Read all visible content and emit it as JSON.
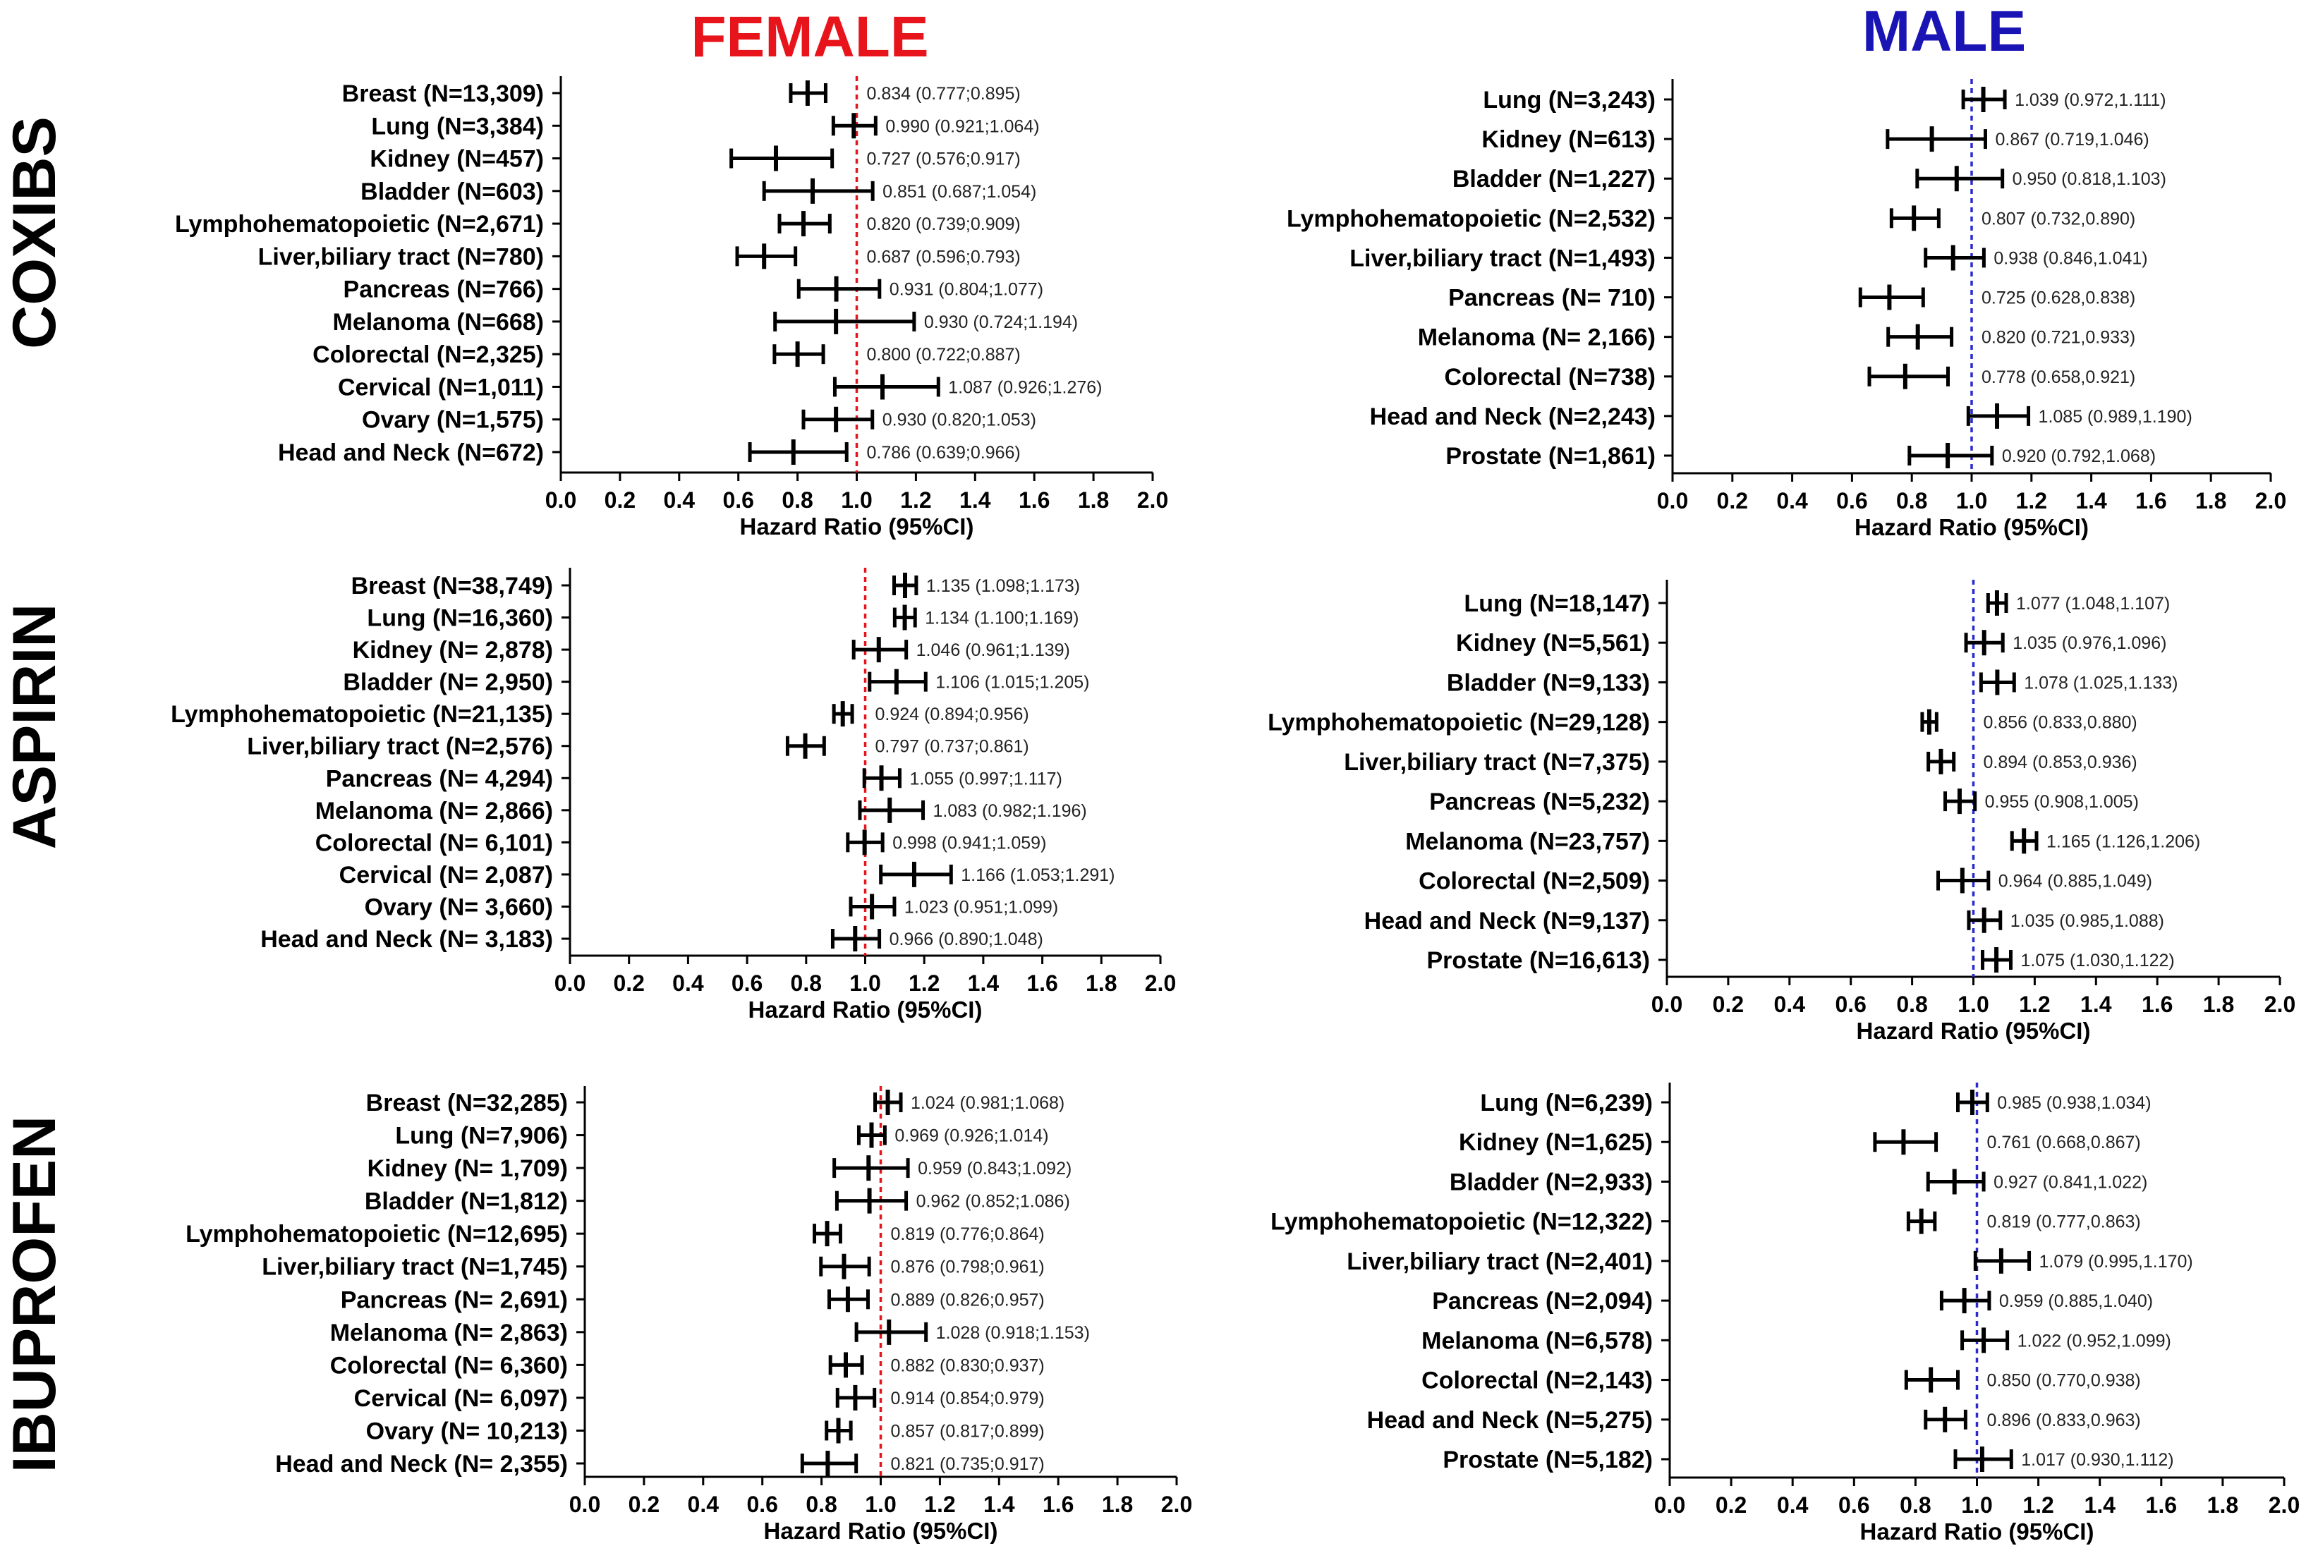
{
  "columns": [
    {
      "key": "female",
      "title": "FEMALE",
      "color": "#e8141b",
      "refline_color": "#e8141b"
    },
    {
      "key": "male",
      "title": "MALE",
      "color": "#1a14b4",
      "refline_color": "#2a2ad0"
    }
  ],
  "rows": [
    {
      "key": "coxibs",
      "title": "COXIBS"
    },
    {
      "key": "aspirin",
      "title": "ASPIRIN"
    },
    {
      "key": "ibuprofen",
      "title": "IBUPROFEN"
    }
  ],
  "chart_data": [
    {
      "type": "forest",
      "drug": "COXIBS",
      "sex": "FEMALE",
      "xlabel": "Hazard Ratio (95%CI)",
      "xlim": [
        0,
        2.0
      ],
      "reference": 1.0,
      "ticks": [
        "0.0",
        "0.2",
        "0.4",
        "0.6",
        "0.8",
        "1.0",
        "1.2",
        "1.4",
        "1.6",
        "1.8",
        "2.0"
      ],
      "items": [
        {
          "label": "Breast (N=13,309)",
          "hr": 0.834,
          "lo": 0.777,
          "hi": 0.895,
          "ci_text": "0.834 (0.777;0.895)"
        },
        {
          "label": "Lung (N=3,384)",
          "hr": 0.99,
          "lo": 0.921,
          "hi": 1.064,
          "ci_text": "0.990 (0.921;1.064)"
        },
        {
          "label": "Kidney (N=457)",
          "hr": 0.727,
          "lo": 0.576,
          "hi": 0.917,
          "ci_text": "0.727 (0.576;0.917)"
        },
        {
          "label": "Bladder (N=603)",
          "hr": 0.851,
          "lo": 0.687,
          "hi": 1.054,
          "ci_text": "0.851 (0.687;1.054)"
        },
        {
          "label": "Lymphohematopoietic (N=2,671)",
          "hr": 0.82,
          "lo": 0.739,
          "hi": 0.909,
          "ci_text": "0.820 (0.739;0.909)"
        },
        {
          "label": "Liver,biliary tract (N=780)",
          "hr": 0.687,
          "lo": 0.596,
          "hi": 0.793,
          "ci_text": "0.687 (0.596;0.793)"
        },
        {
          "label": "Pancreas (N=766)",
          "hr": 0.931,
          "lo": 0.804,
          "hi": 1.077,
          "ci_text": "0.931 (0.804;1.077)"
        },
        {
          "label": "Melanoma (N=668)",
          "hr": 0.93,
          "lo": 0.724,
          "hi": 1.194,
          "ci_text": "0.930 (0.724;1.194)"
        },
        {
          "label": "Colorectal (N=2,325)",
          "hr": 0.8,
          "lo": 0.722,
          "hi": 0.887,
          "ci_text": "0.800 (0.722;0.887)"
        },
        {
          "label": "Cervical (N=1,011)",
          "hr": 1.087,
          "lo": 0.926,
          "hi": 1.276,
          "ci_text": "1.087 (0.926;1.276)"
        },
        {
          "label": "Ovary (N=1,575)",
          "hr": 0.93,
          "lo": 0.82,
          "hi": 1.053,
          "ci_text": "0.930 (0.820;1.053)"
        },
        {
          "label": "Head and Neck (N=672)",
          "hr": 0.786,
          "lo": 0.639,
          "hi": 0.966,
          "ci_text": "0.786 (0.639;0.966)"
        }
      ]
    },
    {
      "type": "forest",
      "drug": "COXIBS",
      "sex": "MALE",
      "xlabel": "Hazard Ratio (95%CI)",
      "xlim": [
        0,
        2.0
      ],
      "reference": 1.0,
      "ticks": [
        "0.0",
        "0.2",
        "0.4",
        "0.6",
        "0.8",
        "1.0",
        "1.2",
        "1.4",
        "1.6",
        "1.8",
        "2.0"
      ],
      "items": [
        {
          "label": "Lung (N=3,243)",
          "hr": 1.039,
          "lo": 0.972,
          "hi": 1.111,
          "ci_text": "1.039 (0.972,1.111)"
        },
        {
          "label": "Kidney (N=613)",
          "hr": 0.867,
          "lo": 0.719,
          "hi": 1.046,
          "ci_text": "0.867 (0.719,1.046)"
        },
        {
          "label": "Bladder (N=1,227)",
          "hr": 0.95,
          "lo": 0.818,
          "hi": 1.103,
          "ci_text": "0.950 (0.818,1.103)"
        },
        {
          "label": "Lymphohematopoietic (N=2,532)",
          "hr": 0.807,
          "lo": 0.732,
          "hi": 0.89,
          "ci_text": "0.807 (0.732,0.890)"
        },
        {
          "label": "Liver,biliary tract (N=1,493)",
          "hr": 0.938,
          "lo": 0.846,
          "hi": 1.041,
          "ci_text": "0.938 (0.846,1.041)"
        },
        {
          "label": "Pancreas (N= 710)",
          "hr": 0.725,
          "lo": 0.628,
          "hi": 0.838,
          "ci_text": "0.725 (0.628,0.838)"
        },
        {
          "label": "Melanoma (N= 2,166)",
          "hr": 0.82,
          "lo": 0.721,
          "hi": 0.933,
          "ci_text": "0.820 (0.721,0.933)"
        },
        {
          "label": "Colorectal (N=738)",
          "hr": 0.778,
          "lo": 0.658,
          "hi": 0.921,
          "ci_text": "0.778 (0.658,0.921)"
        },
        {
          "label": "Head and Neck (N=2,243)",
          "hr": 1.085,
          "lo": 0.989,
          "hi": 1.19,
          "ci_text": "1.085 (0.989,1.190)"
        },
        {
          "label": "Prostate (N=1,861)",
          "hr": 0.92,
          "lo": 0.792,
          "hi": 1.068,
          "ci_text": "0.920 (0.792,1.068)"
        }
      ]
    },
    {
      "type": "forest",
      "drug": "ASPIRIN",
      "sex": "FEMALE",
      "xlabel": "Hazard Ratio (95%CI)",
      "xlim": [
        0,
        2.0
      ],
      "reference": 1.0,
      "ticks": [
        "0.0",
        "0.2",
        "0.4",
        "0.6",
        "0.8",
        "1.0",
        "1.2",
        "1.4",
        "1.6",
        "1.8",
        "2.0"
      ],
      "items": [
        {
          "label": "Breast (N=38,749)",
          "hr": 1.135,
          "lo": 1.098,
          "hi": 1.173,
          "ci_text": "1.135 (1.098;1.173)"
        },
        {
          "label": "Lung (N=16,360)",
          "hr": 1.134,
          "lo": 1.1,
          "hi": 1.169,
          "ci_text": "1.134 (1.100;1.169)"
        },
        {
          "label": "Kidney (N= 2,878)",
          "hr": 1.046,
          "lo": 0.961,
          "hi": 1.139,
          "ci_text": "1.046 (0.961;1.139)"
        },
        {
          "label": "Bladder (N= 2,950)",
          "hr": 1.106,
          "lo": 1.015,
          "hi": 1.205,
          "ci_text": "1.106 (1.015;1.205)"
        },
        {
          "label": "Lymphohematopoietic (N=21,135)",
          "hr": 0.924,
          "lo": 0.894,
          "hi": 0.956,
          "ci_text": "0.924 (0.894;0.956)"
        },
        {
          "label": "Liver,biliary tract (N=2,576)",
          "hr": 0.797,
          "lo": 0.737,
          "hi": 0.861,
          "ci_text": "0.797 (0.737;0.861)"
        },
        {
          "label": "Pancreas (N= 4,294)",
          "hr": 1.055,
          "lo": 0.997,
          "hi": 1.117,
          "ci_text": "1.055 (0.997;1.117)"
        },
        {
          "label": "Melanoma (N= 2,866)",
          "hr": 1.083,
          "lo": 0.982,
          "hi": 1.196,
          "ci_text": "1.083 (0.982;1.196)"
        },
        {
          "label": "Colorectal (N= 6,101)",
          "hr": 0.998,
          "lo": 0.941,
          "hi": 1.059,
          "ci_text": "0.998 (0.941;1.059)"
        },
        {
          "label": "Cervical (N= 2,087)",
          "hr": 1.166,
          "lo": 1.053,
          "hi": 1.291,
          "ci_text": "1.166 (1.053;1.291)"
        },
        {
          "label": "Ovary (N= 3,660)",
          "hr": 1.023,
          "lo": 0.951,
          "hi": 1.099,
          "ci_text": "1.023 (0.951;1.099)"
        },
        {
          "label": "Head and Neck (N= 3,183)",
          "hr": 0.966,
          "lo": 0.89,
          "hi": 1.048,
          "ci_text": "0.966 (0.890;1.048)"
        }
      ]
    },
    {
      "type": "forest",
      "drug": "ASPIRIN",
      "sex": "MALE",
      "xlabel": "Hazard Ratio (95%CI)",
      "xlim": [
        0,
        2.0
      ],
      "reference": 1.0,
      "ticks": [
        "0.0",
        "0.2",
        "0.4",
        "0.6",
        "0.8",
        "1.0",
        "1.2",
        "1.4",
        "1.6",
        "1.8",
        "2.0"
      ],
      "items": [
        {
          "label": "Lung (N=18,147)",
          "hr": 1.077,
          "lo": 1.048,
          "hi": 1.107,
          "ci_text": "1.077 (1.048,1.107)"
        },
        {
          "label": "Kidney (N=5,561)",
          "hr": 1.035,
          "lo": 0.976,
          "hi": 1.096,
          "ci_text": "1.035 (0.976,1.096)"
        },
        {
          "label": "Bladder (N=9,133)",
          "hr": 1.078,
          "lo": 1.025,
          "hi": 1.133,
          "ci_text": "1.078 (1.025,1.133)"
        },
        {
          "label": "Lymphohematopoietic (N=29,128)",
          "hr": 0.856,
          "lo": 0.833,
          "hi": 0.88,
          "ci_text": "0.856 (0.833,0.880)"
        },
        {
          "label": "Liver,biliary tract (N=7,375)",
          "hr": 0.894,
          "lo": 0.853,
          "hi": 0.936,
          "ci_text": "0.894 (0.853,0.936)"
        },
        {
          "label": "Pancreas (N=5,232)",
          "hr": 0.955,
          "lo": 0.908,
          "hi": 1.005,
          "ci_text": "0.955 (0.908,1.005)"
        },
        {
          "label": "Melanoma (N=23,757)",
          "hr": 1.165,
          "lo": 1.126,
          "hi": 1.206,
          "ci_text": "1.165 (1.126,1.206)"
        },
        {
          "label": "Colorectal (N=2,509)",
          "hr": 0.964,
          "lo": 0.885,
          "hi": 1.049,
          "ci_text": "0.964 (0.885,1.049)"
        },
        {
          "label": "Head and Neck (N=9,137)",
          "hr": 1.035,
          "lo": 0.985,
          "hi": 1.088,
          "ci_text": "1.035 (0.985,1.088)"
        },
        {
          "label": "Prostate (N=16,613)",
          "hr": 1.075,
          "lo": 1.03,
          "hi": 1.122,
          "ci_text": "1.075 (1.030,1.122)"
        }
      ]
    },
    {
      "type": "forest",
      "drug": "IBUPROFEN",
      "sex": "FEMALE",
      "xlabel": "Hazard Ratio (95%CI)",
      "xlim": [
        0,
        2.0
      ],
      "reference": 1.0,
      "ticks": [
        "0.0",
        "0.2",
        "0.4",
        "0.6",
        "0.8",
        "1.0",
        "1.2",
        "1.4",
        "1.6",
        "1.8",
        "2.0"
      ],
      "items": [
        {
          "label": "Breast (N=32,285)",
          "hr": 1.024,
          "lo": 0.981,
          "hi": 1.068,
          "ci_text": "1.024 (0.981;1.068)"
        },
        {
          "label": "Lung (N=7,906)",
          "hr": 0.969,
          "lo": 0.926,
          "hi": 1.014,
          "ci_text": "0.969 (0.926;1.014)"
        },
        {
          "label": "Kidney (N= 1,709)",
          "hr": 0.959,
          "lo": 0.843,
          "hi": 1.092,
          "ci_text": "0.959 (0.843;1.092)"
        },
        {
          "label": "Bladder (N=1,812)",
          "hr": 0.962,
          "lo": 0.852,
          "hi": 1.086,
          "ci_text": "0.962 (0.852;1.086)"
        },
        {
          "label": "Lymphohematopoietic (N=12,695)",
          "hr": 0.819,
          "lo": 0.776,
          "hi": 0.864,
          "ci_text": "0.819 (0.776;0.864)"
        },
        {
          "label": "Liver,biliary tract (N=1,745)",
          "hr": 0.876,
          "lo": 0.798,
          "hi": 0.961,
          "ci_text": "0.876 (0.798;0.961)"
        },
        {
          "label": "Pancreas (N= 2,691)",
          "hr": 0.889,
          "lo": 0.826,
          "hi": 0.957,
          "ci_text": "0.889 (0.826;0.957)"
        },
        {
          "label": "Melanoma (N= 2,863)",
          "hr": 1.028,
          "lo": 0.918,
          "hi": 1.153,
          "ci_text": "1.028 (0.918;1.153)"
        },
        {
          "label": "Colorectal (N= 6,360)",
          "hr": 0.882,
          "lo": 0.83,
          "hi": 0.937,
          "ci_text": "0.882 (0.830;0.937)"
        },
        {
          "label": "Cervical (N= 6,097)",
          "hr": 0.914,
          "lo": 0.854,
          "hi": 0.979,
          "ci_text": "0.914 (0.854;0.979)"
        },
        {
          "label": "Ovary (N= 10,213)",
          "hr": 0.857,
          "lo": 0.817,
          "hi": 0.899,
          "ci_text": "0.857 (0.817;0.899)"
        },
        {
          "label": "Head and Neck (N= 2,355)",
          "hr": 0.821,
          "lo": 0.735,
          "hi": 0.917,
          "ci_text": "0.821 (0.735;0.917)"
        }
      ]
    },
    {
      "type": "forest",
      "drug": "IBUPROFEN",
      "sex": "MALE",
      "xlabel": "Hazard Ratio (95%CI)",
      "xlim": [
        0,
        2.0
      ],
      "reference": 1.0,
      "ticks": [
        "0.0",
        "0.2",
        "0.4",
        "0.6",
        "0.8",
        "1.0",
        "1.2",
        "1.4",
        "1.6",
        "1.8",
        "2.0"
      ],
      "items": [
        {
          "label": "Lung (N=6,239)",
          "hr": 0.985,
          "lo": 0.938,
          "hi": 1.034,
          "ci_text": "0.985 (0.938,1.034)"
        },
        {
          "label": "Kidney (N=1,625)",
          "hr": 0.761,
          "lo": 0.668,
          "hi": 0.867,
          "ci_text": "0.761 (0.668,0.867)"
        },
        {
          "label": "Bladder (N=2,933)",
          "hr": 0.927,
          "lo": 0.841,
          "hi": 1.022,
          "ci_text": "0.927 (0.841,1.022)"
        },
        {
          "label": "Lymphohematopoietic (N=12,322)",
          "hr": 0.819,
          "lo": 0.777,
          "hi": 0.863,
          "ci_text": "0.819 (0.777,0.863)"
        },
        {
          "label": "Liver,biliary tract (N=2,401)",
          "hr": 1.079,
          "lo": 0.995,
          "hi": 1.17,
          "ci_text": "1.079 (0.995,1.170)"
        },
        {
          "label": "Pancreas (N=2,094)",
          "hr": 0.959,
          "lo": 0.885,
          "hi": 1.04,
          "ci_text": "0.959 (0.885,1.040)"
        },
        {
          "label": "Melanoma (N=6,578)",
          "hr": 1.022,
          "lo": 0.952,
          "hi": 1.099,
          "ci_text": "1.022 (0.952,1.099)"
        },
        {
          "label": "Colorectal (N=2,143)",
          "hr": 0.85,
          "lo": 0.77,
          "hi": 0.938,
          "ci_text": "0.850 (0.770,0.938)"
        },
        {
          "label": "Head and Neck (N=5,275)",
          "hr": 0.896,
          "lo": 0.833,
          "hi": 0.963,
          "ci_text": "0.896 (0.833,0.963)"
        },
        {
          "label": "Prostate (N=5,182)",
          "hr": 1.017,
          "lo": 0.93,
          "hi": 1.112,
          "ci_text": "1.017 (0.930,1.112)"
        }
      ]
    }
  ]
}
